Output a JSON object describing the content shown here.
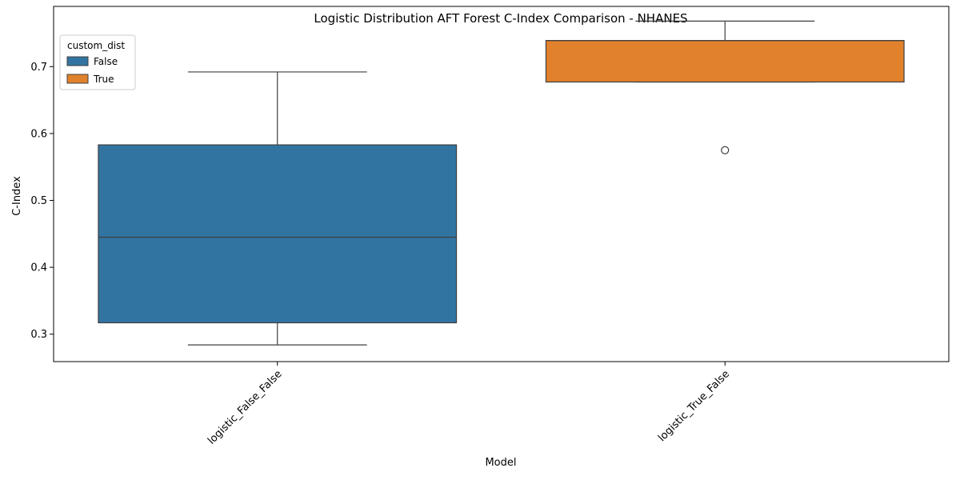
{
  "chart_data": {
    "type": "box",
    "title": "Logistic Distribution AFT Forest C-Index Comparison - NHANES",
    "xlabel": "Model",
    "ylabel": "C-Index",
    "ylim": [
      0.259,
      0.79
    ],
    "yticks": [
      0.3,
      0.4,
      0.5,
      0.6,
      0.7
    ],
    "categories": [
      "logistic_False_False",
      "logistic_True_False"
    ],
    "legend": {
      "title": "custom_dist",
      "position": "top-left",
      "entries": [
        {
          "label": "False",
          "color": "#3274a1"
        },
        {
          "label": "True",
          "color": "#e1812c"
        }
      ]
    },
    "boxes": [
      {
        "category": "logistic_False_False",
        "hue": "False",
        "color": "#3274a1",
        "whisker_low": 0.284,
        "q1": 0.317,
        "median": 0.445,
        "q3": 0.583,
        "whisker_high": 0.692,
        "outliers": []
      },
      {
        "category": "logistic_True_False",
        "hue": "True",
        "color": "#e1812c",
        "whisker_low": 0.677,
        "q1": 0.677,
        "median": 0.739,
        "q3": 0.739,
        "whisker_high": 0.768,
        "outliers": [
          0.575
        ]
      }
    ]
  }
}
